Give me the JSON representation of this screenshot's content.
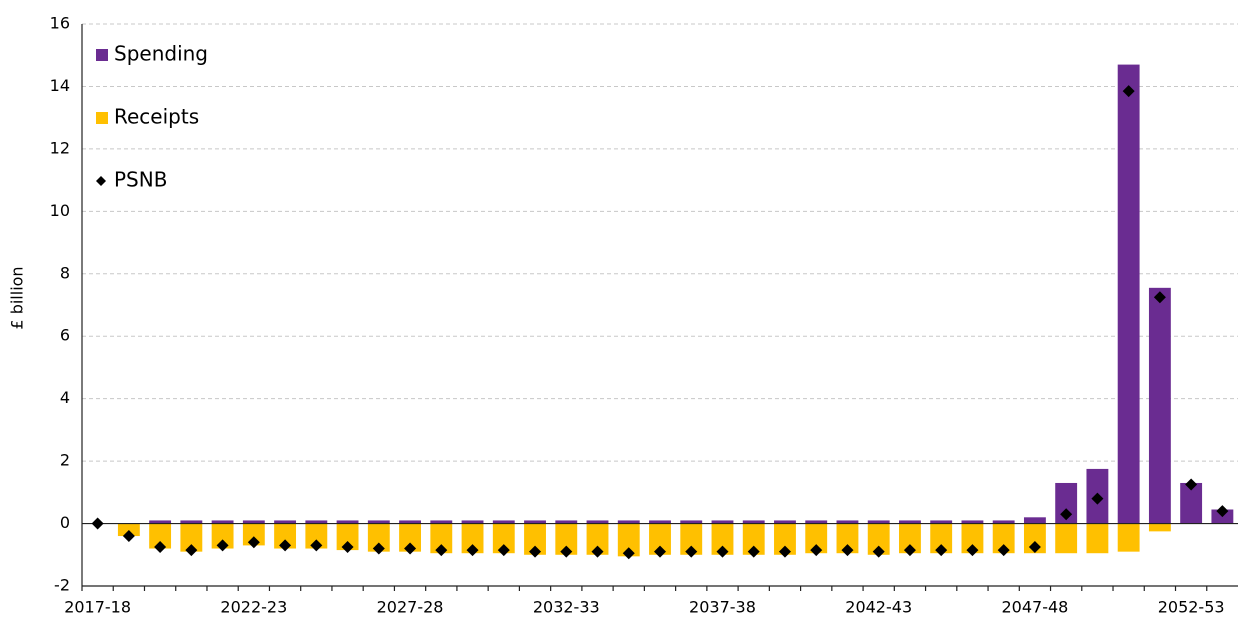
{
  "chart_data": {
    "type": "bar",
    "y_label": "£ billion",
    "categories": [
      "2017-18",
      null,
      null,
      null,
      null,
      "2022-23",
      null,
      null,
      null,
      null,
      "2027-28",
      null,
      null,
      null,
      null,
      "2032-33",
      null,
      null,
      null,
      null,
      "2037-38",
      null,
      null,
      null,
      null,
      "2042-43",
      null,
      null,
      null,
      null,
      "2047-48",
      null,
      null,
      null,
      null,
      "2052-53",
      null
    ],
    "series": [
      {
        "name": "Spending",
        "color": "#6a2c91",
        "values": [
          0,
          0,
          0.1,
          0.1,
          0.1,
          0.1,
          0.1,
          0.1,
          0.1,
          0.1,
          0.1,
          0.1,
          0.1,
          0.1,
          0.1,
          0.1,
          0.1,
          0.1,
          0.1,
          0.1,
          0.1,
          0.1,
          0.1,
          0.1,
          0.1,
          0.1,
          0.1,
          0.1,
          0.1,
          0.1,
          0.2,
          1.3,
          1.75,
          14.7,
          7.55,
          1.3,
          0.45
        ]
      },
      {
        "name": "Receipts",
        "color": "#ffc000",
        "values": [
          0,
          -0.4,
          -0.8,
          -0.9,
          -0.8,
          -0.7,
          -0.8,
          -0.8,
          -0.85,
          -0.9,
          -0.9,
          -0.95,
          -0.95,
          -0.95,
          -1.0,
          -1.0,
          -1.0,
          -1.05,
          -1.0,
          -1.0,
          -1.0,
          -1.0,
          -1.0,
          -0.95,
          -0.95,
          -1.0,
          -0.95,
          -0.95,
          -0.95,
          -0.95,
          -0.95,
          -0.95,
          -0.95,
          -0.9,
          -0.25,
          0,
          0
        ]
      },
      {
        "name": "PSNB",
        "color": "#000000",
        "marker": "diamond",
        "values": [
          0,
          -0.4,
          -0.75,
          -0.85,
          -0.7,
          -0.6,
          -0.7,
          -0.7,
          -0.75,
          -0.8,
          -0.8,
          -0.85,
          -0.85,
          -0.85,
          -0.9,
          -0.9,
          -0.9,
          -0.95,
          -0.9,
          -0.9,
          -0.9,
          -0.9,
          -0.9,
          -0.85,
          -0.85,
          -0.9,
          -0.85,
          -0.85,
          -0.85,
          -0.85,
          -0.75,
          0.3,
          0.8,
          13.85,
          7.25,
          1.25,
          0.4
        ]
      }
    ],
    "ylim": [
      -2,
      16
    ],
    "yticks": [
      -2,
      0,
      2,
      4,
      6,
      8,
      10,
      12,
      14,
      16
    ],
    "grid": true,
    "legend": "top-left"
  }
}
